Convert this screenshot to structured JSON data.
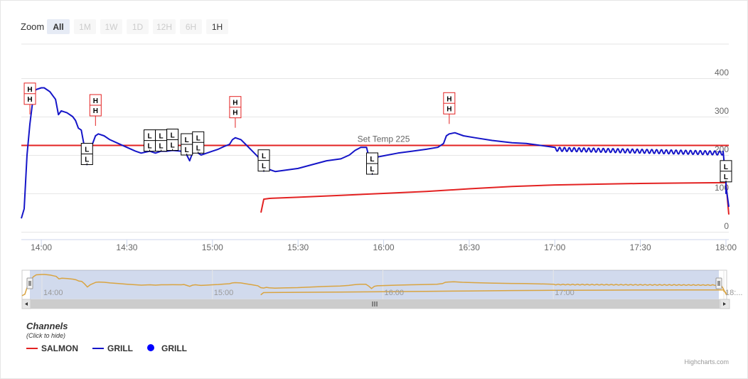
{
  "zoom": {
    "label": "Zoom",
    "buttons": [
      {
        "label": "All",
        "state": "selected"
      },
      {
        "label": "1M",
        "state": "disabled"
      },
      {
        "label": "1W",
        "state": "disabled"
      },
      {
        "label": "1D",
        "state": "disabled"
      },
      {
        "label": "12H",
        "state": "disabled"
      },
      {
        "label": "6H",
        "state": "disabled"
      },
      {
        "label": "1H",
        "state": "normal"
      }
    ]
  },
  "legend": {
    "title": "Channels",
    "subtitle": "(Click to hide)",
    "items": [
      {
        "label": "SALMON",
        "symbol": "line",
        "color": "#e32222"
      },
      {
        "label": "GRILL",
        "symbol": "line",
        "color": "#1515c8"
      },
      {
        "label": "GRILL",
        "symbol": "dot",
        "color": "#0000ff"
      }
    ]
  },
  "credits": "Highcharts.com",
  "chart_data": {
    "type": "line",
    "x_unit": "time (HH:MM)",
    "xlim": [
      "13:53",
      "18:01"
    ],
    "ylim": [
      0,
      400
    ],
    "yticks": [
      0,
      100,
      200,
      300,
      400
    ],
    "xticks": [
      "14:00",
      "14:30",
      "15:00",
      "15:30",
      "16:00",
      "16:30",
      "17:00",
      "17:30",
      "18:00"
    ],
    "grid": true,
    "plot_line": {
      "label": "Set Temp 225",
      "value": 225,
      "color": "#e32222"
    },
    "series": [
      {
        "name": "GRILL",
        "color": "#1515c8",
        "oscillation": {
          "from": "17:00",
          "to": "17:59",
          "period_min": 1.7,
          "amplitude": 10
        },
        "points": [
          [
            "13:53",
            35
          ],
          [
            "13:54",
            60
          ],
          [
            "13:55",
            200
          ],
          [
            "13:56",
            280
          ],
          [
            "13:57",
            340
          ],
          [
            "13:58",
            370
          ],
          [
            "14:00",
            375
          ],
          [
            "14:01",
            375
          ],
          [
            "14:03",
            365
          ],
          [
            "14:04",
            355
          ],
          [
            "14:05",
            345
          ],
          [
            "14:06",
            305
          ],
          [
            "14:07",
            315
          ],
          [
            "14:09",
            310
          ],
          [
            "14:11",
            300
          ],
          [
            "14:12",
            290
          ],
          [
            "14:13",
            270
          ],
          [
            "14:14",
            265
          ],
          [
            "14:15",
            225
          ],
          [
            "14:16",
            175
          ],
          [
            "14:17",
            210
          ],
          [
            "14:19",
            250
          ],
          [
            "14:20",
            255
          ],
          [
            "14:22",
            250
          ],
          [
            "14:24",
            240
          ],
          [
            "14:27",
            230
          ],
          [
            "14:30",
            220
          ],
          [
            "14:33",
            210
          ],
          [
            "14:35",
            205
          ],
          [
            "14:38",
            210
          ],
          [
            "14:40",
            205
          ],
          [
            "14:42",
            210
          ],
          [
            "14:44",
            210
          ],
          [
            "14:46",
            212
          ],
          [
            "14:49",
            210
          ],
          [
            "14:50",
            215
          ],
          [
            "14:51",
            200
          ],
          [
            "14:52",
            185
          ],
          [
            "14:53",
            205
          ],
          [
            "14:54",
            210
          ],
          [
            "14:55",
            205
          ],
          [
            "14:56",
            200
          ],
          [
            "14:58",
            205
          ],
          [
            "15:00",
            210
          ],
          [
            "15:02",
            215
          ],
          [
            "15:04",
            222
          ],
          [
            "15:06",
            228
          ],
          [
            "15:07",
            240
          ],
          [
            "15:08",
            245
          ],
          [
            "15:10",
            240
          ],
          [
            "15:12",
            225
          ],
          [
            "15:14",
            210
          ],
          [
            "15:16",
            195
          ],
          [
            "15:17",
            165
          ],
          [
            "15:18",
            158
          ],
          [
            "15:19",
            170
          ],
          [
            "15:20",
            162
          ],
          [
            "15:22",
            157
          ],
          [
            "15:25",
            160
          ],
          [
            "15:30",
            165
          ],
          [
            "15:35",
            175
          ],
          [
            "15:40",
            185
          ],
          [
            "15:45",
            190
          ],
          [
            "15:48",
            200
          ],
          [
            "15:50",
            212
          ],
          [
            "15:52",
            220
          ],
          [
            "15:54",
            220
          ],
          [
            "15:55",
            190
          ],
          [
            "15:56",
            150
          ],
          [
            "15:57",
            185
          ],
          [
            "15:58",
            195
          ],
          [
            "16:00",
            198
          ],
          [
            "16:05",
            205
          ],
          [
            "16:10",
            210
          ],
          [
            "16:15",
            215
          ],
          [
            "16:19",
            220
          ],
          [
            "16:21",
            230
          ],
          [
            "16:22",
            250
          ],
          [
            "16:23",
            255
          ],
          [
            "16:25",
            258
          ],
          [
            "16:28",
            250
          ],
          [
            "16:32",
            245
          ],
          [
            "16:38",
            238
          ],
          [
            "16:45",
            232
          ],
          [
            "16:50",
            230
          ],
          [
            "16:55",
            225
          ],
          [
            "17:00",
            220
          ],
          [
            "17:59",
            210
          ],
          [
            "18:00",
            130
          ],
          [
            "18:00",
            100
          ],
          [
            "18:00",
            120
          ],
          [
            "18:01",
            65
          ]
        ]
      },
      {
        "name": "SALMON",
        "color": "#e32222",
        "points": [
          [
            "15:17",
            50
          ],
          [
            "15:18",
            85
          ],
          [
            "15:20",
            87
          ],
          [
            "15:30",
            90
          ],
          [
            "15:45",
            95
          ],
          [
            "16:00",
            100
          ],
          [
            "16:15",
            105
          ],
          [
            "16:30",
            112
          ],
          [
            "16:45",
            118
          ],
          [
            "17:00",
            122
          ],
          [
            "17:15",
            124
          ],
          [
            "17:30",
            126
          ],
          [
            "17:45",
            127
          ],
          [
            "17:59",
            128
          ],
          [
            "18:00",
            128
          ],
          [
            "18:01",
            45
          ]
        ]
      }
    ],
    "flags": [
      {
        "label": "H",
        "x": "13:56"
      },
      {
        "label": "L",
        "x": "14:16"
      },
      {
        "label": "H",
        "x": "14:19"
      },
      {
        "label": "L",
        "x": "14:38"
      },
      {
        "label": "L",
        "x": "14:42"
      },
      {
        "label": "L",
        "x": "14:46"
      },
      {
        "label": "L",
        "x": "14:51"
      },
      {
        "label": "L",
        "x": "14:55"
      },
      {
        "label": "H",
        "x": "15:08"
      },
      {
        "label": "L",
        "x": "15:18"
      },
      {
        "label": "L",
        "x": "15:56"
      },
      {
        "label": "H",
        "x": "16:23"
      },
      {
        "label": "L",
        "x": "18:00"
      }
    ],
    "navigator": {
      "xticks": [
        "14:00",
        "15:00",
        "16:00",
        "17:00",
        "18:00"
      ],
      "xtick_labels": [
        "14:00",
        "15:00",
        "16:00",
        "17:00",
        "18:..."
      ],
      "line_color": "#d9a441"
    }
  }
}
